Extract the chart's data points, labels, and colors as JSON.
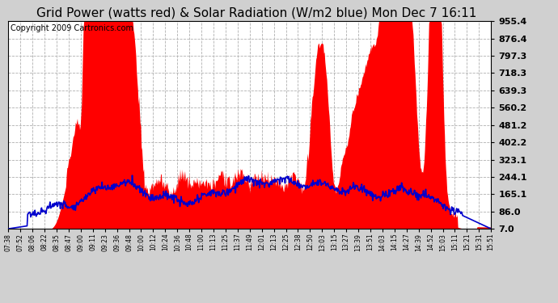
{
  "title": "Grid Power (watts red) & Solar Radiation (W/m2 blue) Mon Dec 7 16:11",
  "copyright": "Copyright 2009 Cartronics.com",
  "ytick_labels": [
    "7.0",
    "86.0",
    "165.1",
    "244.1",
    "323.1",
    "402.2",
    "481.2",
    "560.2",
    "639.3",
    "718.3",
    "797.3",
    "876.4",
    "955.4"
  ],
  "ytick_values": [
    7.0,
    86.0,
    165.1,
    244.1,
    323.1,
    402.2,
    481.2,
    560.2,
    639.3,
    718.3,
    797.3,
    876.4,
    955.4
  ],
  "ylim_min": 7.0,
  "ylim_max": 955.4,
  "xtick_labels": [
    "07:38",
    "07:52",
    "08:06",
    "08:22",
    "08:35",
    "08:47",
    "09:00",
    "09:11",
    "09:23",
    "09:36",
    "09:48",
    "10:00",
    "10:12",
    "10:24",
    "10:36",
    "10:48",
    "11:00",
    "11:13",
    "11:25",
    "11:37",
    "11:49",
    "12:01",
    "12:13",
    "12:25",
    "12:38",
    "12:50",
    "13:03",
    "13:15",
    "13:27",
    "13:39",
    "13:51",
    "14:03",
    "14:15",
    "14:27",
    "14:39",
    "14:52",
    "15:03",
    "15:11",
    "15:21",
    "15:31",
    "15:51"
  ],
  "red_color": "#ff0000",
  "blue_color": "#0000cc",
  "grid_color": "#b0b0b0",
  "bg_color": "#d0d0d0",
  "plot_bg": "#ffffff",
  "title_fontsize": 11,
  "copyright_fontsize": 7,
  "yaxis_label_fontsize": 8,
  "xaxis_label_fontsize": 5.5
}
